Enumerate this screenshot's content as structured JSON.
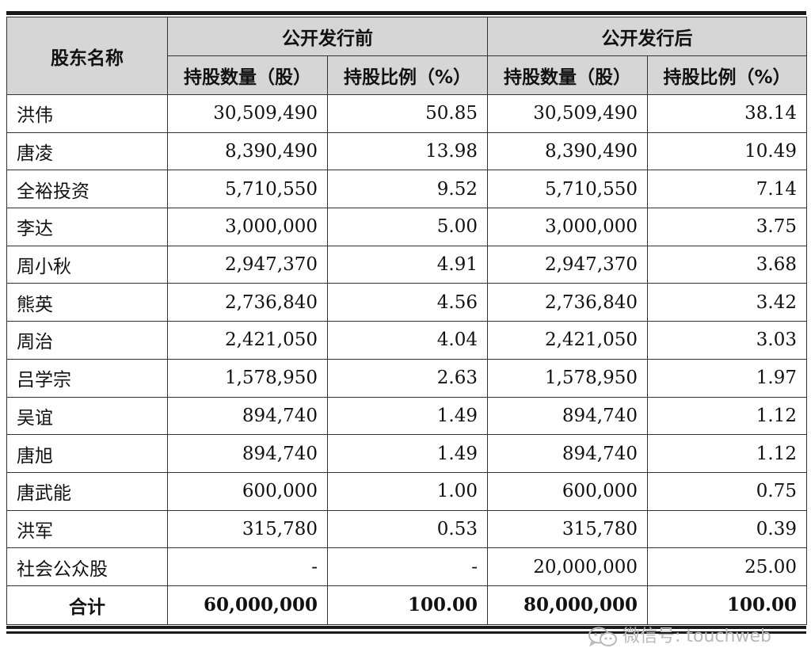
{
  "header": {
    "name_col": "股东名称",
    "group_before": "公开发行前",
    "group_after": "公开发行后",
    "shares_label": "持股数量（股）",
    "ratio_label": "持股比例（%）"
  },
  "rows": [
    {
      "name": "洪伟",
      "before_shares": "30,509,490",
      "before_ratio": "50.85",
      "after_shares": "30,509,490",
      "after_ratio": "38.14"
    },
    {
      "name": "唐凌",
      "before_shares": "8,390,490",
      "before_ratio": "13.98",
      "after_shares": "8,390,490",
      "after_ratio": "10.49"
    },
    {
      "name": "全裕投资",
      "before_shares": "5,710,550",
      "before_ratio": "9.52",
      "after_shares": "5,710,550",
      "after_ratio": "7.14"
    },
    {
      "name": "李达",
      "before_shares": "3,000,000",
      "before_ratio": "5.00",
      "after_shares": "3,000,000",
      "after_ratio": "3.75"
    },
    {
      "name": "周小秋",
      "before_shares": "2,947,370",
      "before_ratio": "4.91",
      "after_shares": "2,947,370",
      "after_ratio": "3.68"
    },
    {
      "name": "熊英",
      "before_shares": "2,736,840",
      "before_ratio": "4.56",
      "after_shares": "2,736,840",
      "after_ratio": "3.42"
    },
    {
      "name": "周治",
      "before_shares": "2,421,050",
      "before_ratio": "4.04",
      "after_shares": "2,421,050",
      "after_ratio": "3.03"
    },
    {
      "name": "吕学宗",
      "before_shares": "1,578,950",
      "before_ratio": "2.63",
      "after_shares": "1,578,950",
      "after_ratio": "1.97"
    },
    {
      "name": "吴谊",
      "before_shares": "894,740",
      "before_ratio": "1.49",
      "after_shares": "894,740",
      "after_ratio": "1.12"
    },
    {
      "name": "唐旭",
      "before_shares": "894,740",
      "before_ratio": "1.49",
      "after_shares": "894,740",
      "after_ratio": "1.12"
    },
    {
      "name": "唐武能",
      "before_shares": "600,000",
      "before_ratio": "1.00",
      "after_shares": "600,000",
      "after_ratio": "0.75"
    },
    {
      "name": "洪军",
      "before_shares": "315,780",
      "before_ratio": "0.53",
      "after_shares": "315,780",
      "after_ratio": "0.39"
    },
    {
      "name": "社会公众股",
      "before_shares": "-",
      "before_ratio": "-",
      "after_shares": "20,000,000",
      "after_ratio": "25.00"
    }
  ],
  "total": {
    "name": "合计",
    "before_shares": "60,000,000",
    "before_ratio": "100.00",
    "after_shares": "80,000,000",
    "after_ratio": "100.00"
  },
  "watermark": {
    "text": "微信号: touchweb",
    "icon": "wechat-icon"
  }
}
